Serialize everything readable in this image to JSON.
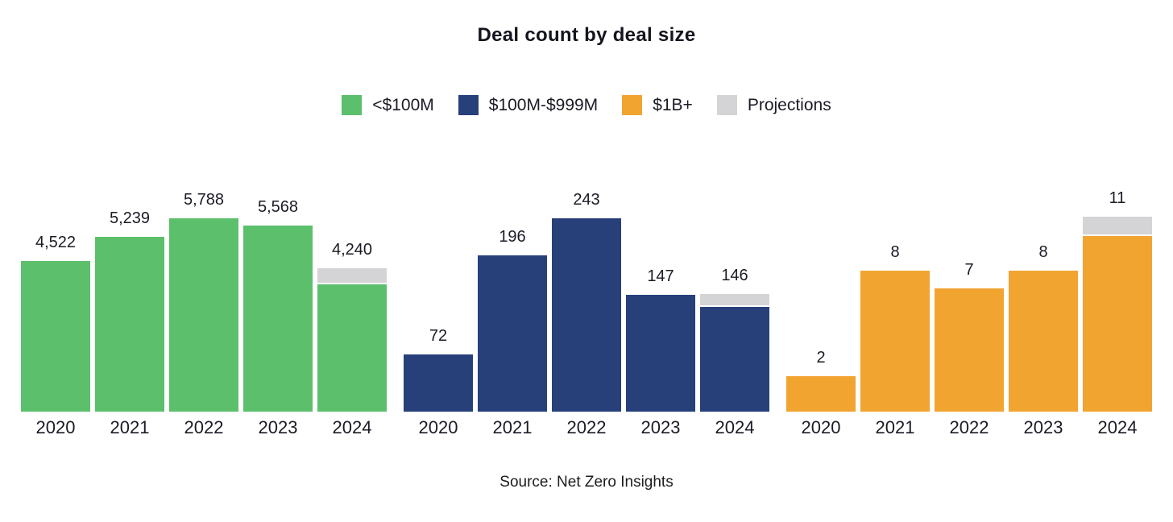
{
  "title": "Deal count by deal size",
  "source": "Source: Net Zero Insights",
  "colors": {
    "green": "#5CBF6B",
    "navy": "#27407A",
    "orange": "#F2A431",
    "projection_gray": "#D4D4D6"
  },
  "legend": {
    "items": [
      {
        "label": "<$100M",
        "color_key": "green"
      },
      {
        "label": "$100M-$999M",
        "color_key": "navy"
      },
      {
        "label": "$1B+",
        "color_key": "orange"
      },
      {
        "label": "Projections",
        "color_key": "projection_gray"
      }
    ]
  },
  "chart_data": {
    "type": "bar",
    "title": "Deal count by deal size",
    "categories": [
      "2020",
      "2021",
      "2022",
      "2023",
      "2024"
    ],
    "groups": [
      {
        "name": "<$100M",
        "color_key": "green",
        "values": [
          4522,
          5239,
          5788,
          5568,
          4240
        ],
        "labels": [
          "4,522",
          "5,239",
          "5,788",
          "5,568",
          "4,240"
        ],
        "projection_extra": [
          0,
          0,
          0,
          0,
          425
        ]
      },
      {
        "name": "$100M-$999M",
        "color_key": "navy",
        "values": [
          72,
          196,
          243,
          147,
          146
        ],
        "labels": [
          "72",
          "196",
          "243",
          "147",
          "146"
        ],
        "projection_extra": [
          0,
          0,
          0,
          0,
          14
        ]
      },
      {
        "name": "$1B+",
        "color_key": "orange",
        "values": [
          2,
          8,
          7,
          8,
          11
        ],
        "labels": [
          "2",
          "8",
          "7",
          "8",
          "11"
        ],
        "projection_extra": [
          0,
          0,
          0,
          0,
          1
        ]
      }
    ],
    "legend_position": "top",
    "grid": false,
    "notes": "Each 2024 bar has a gray projected segment stacked on top; the printed value is the projected year-end total. Each series group is scaled independently."
  }
}
